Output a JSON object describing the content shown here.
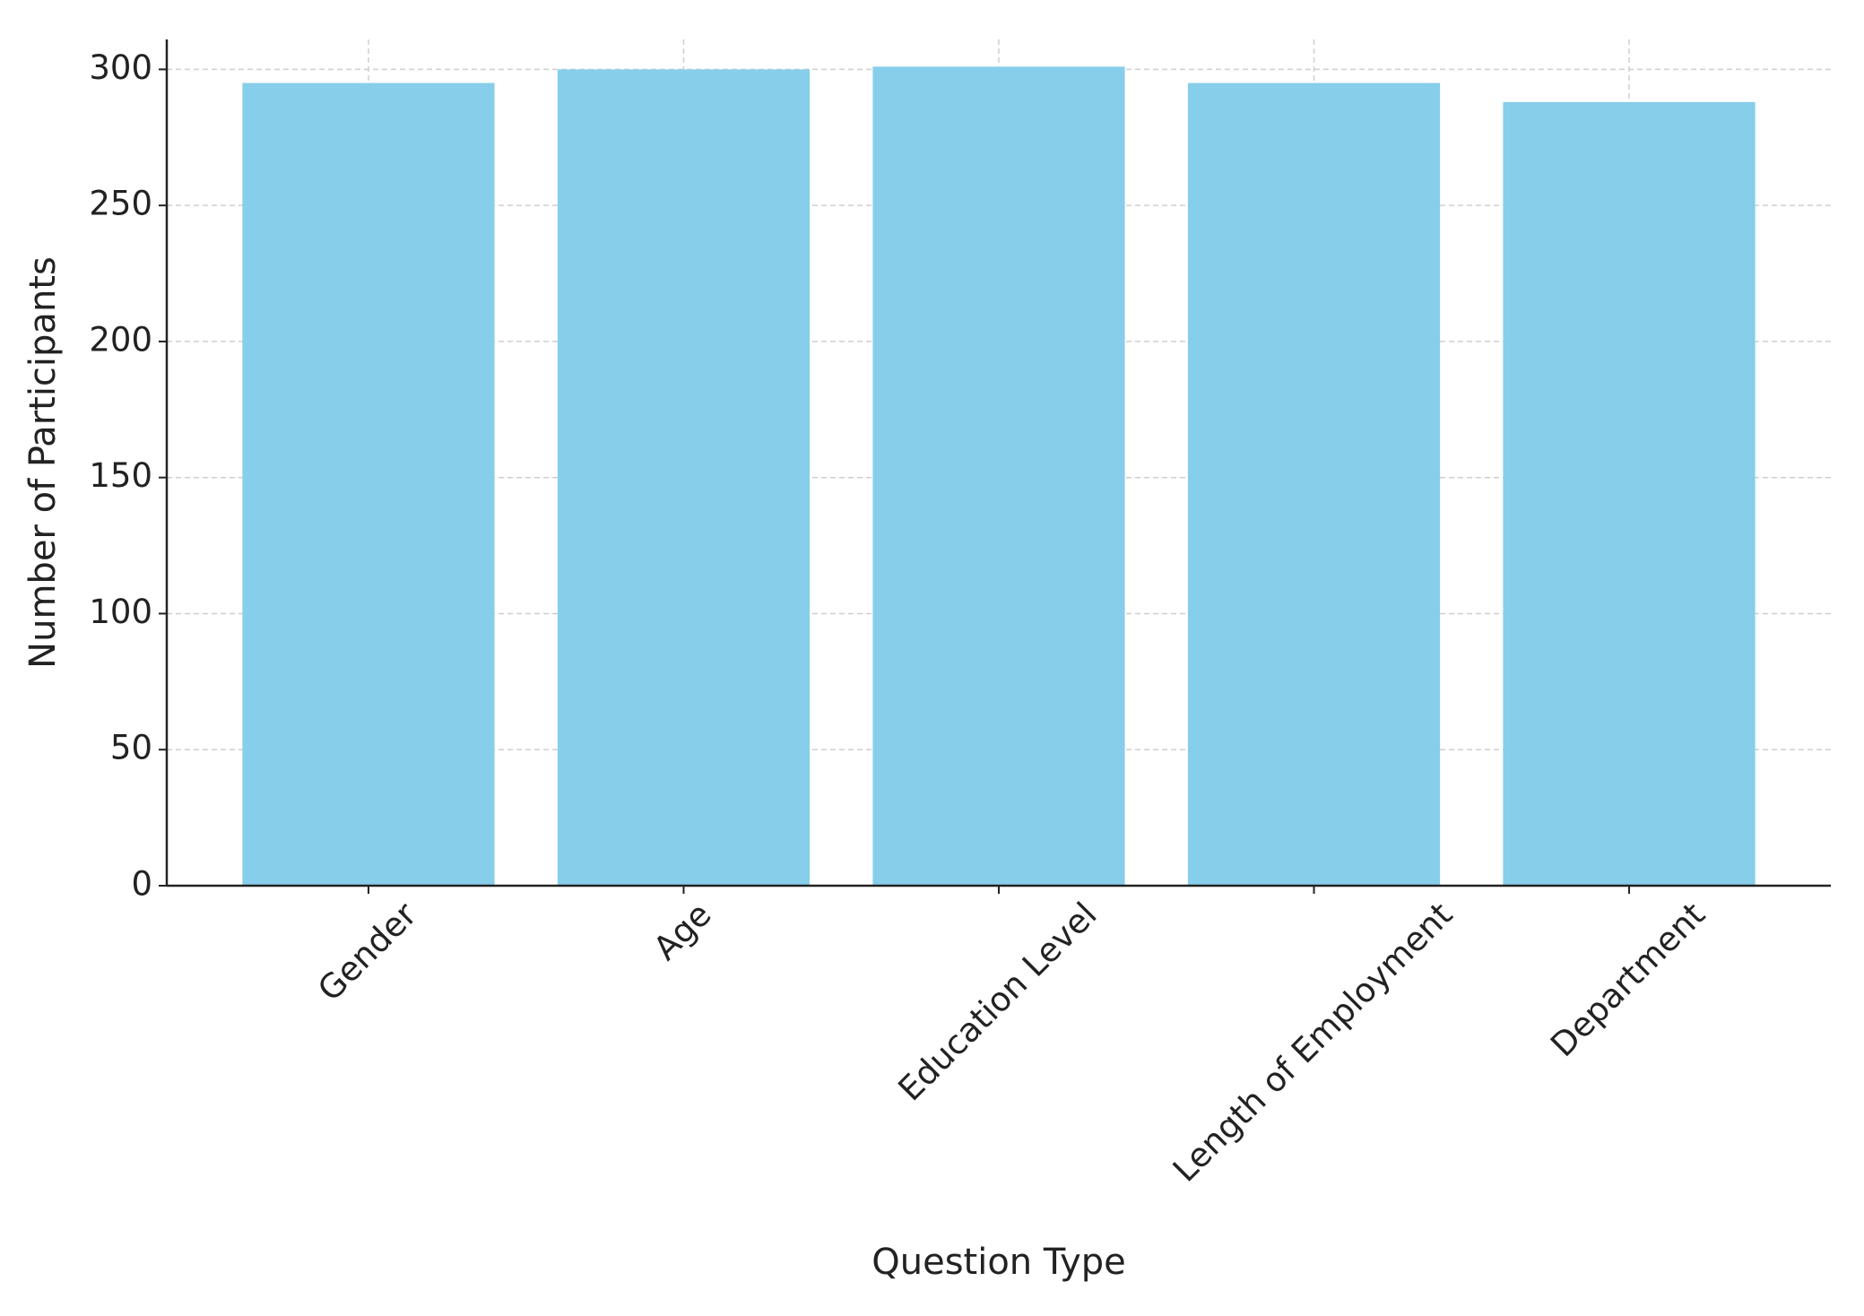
{
  "chart_data": {
    "type": "bar",
    "x_label": "Question Type",
    "y_label": "Number of Participants",
    "categories": [
      "Gender",
      "Age",
      "Education Level",
      "Length of Employment",
      "Department"
    ],
    "values": [
      295,
      300,
      301,
      295,
      288
    ],
    "color": "#87ceeb",
    "ylim": [
      0,
      311
    ],
    "yticks": [
      0,
      50,
      100,
      150,
      200,
      250,
      300
    ],
    "grid": true
  }
}
